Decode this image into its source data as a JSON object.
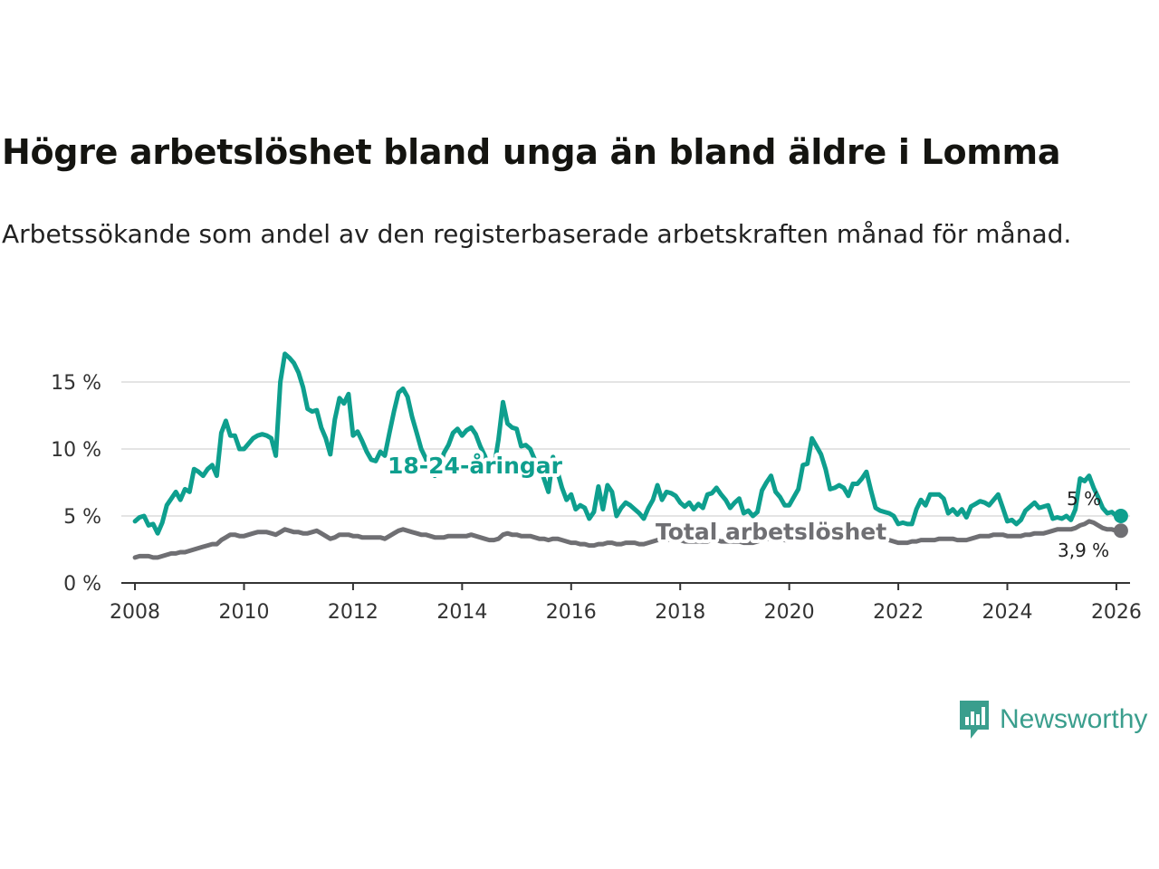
{
  "title": "Högre arbetslöshet bland unga än bland äldre i Lomma",
  "subtitle": "Arbetssökande som andel av den registerbaserade arbetskraften månad för månad.",
  "brand": {
    "name": "Newsworthy",
    "icon": "newsworthy-logo-icon",
    "color": "#3a9e8d"
  },
  "chart_data": {
    "type": "line",
    "title": "Högre arbetslöshet bland unga än bland äldre i Lomma",
    "subtitle": "Arbetssökande som andel av den registerbaserade arbetskraften månad för månad.",
    "xlabel": "",
    "ylabel": "",
    "xlim": [
      2007.75,
      2026.25
    ],
    "ylim": [
      0,
      17.5
    ],
    "x_ticks": [
      2008,
      2010,
      2012,
      2014,
      2016,
      2018,
      2020,
      2022,
      2024,
      2026
    ],
    "x_tick_labels": [
      "2008",
      "2010",
      "2012",
      "2014",
      "2016",
      "2018",
      "2020",
      "2022",
      "2024",
      "2026"
    ],
    "y_ticks": [
      0,
      5,
      10,
      15
    ],
    "y_tick_labels": [
      "0 %",
      "5 %",
      "10 %",
      "15 %"
    ],
    "grid": true,
    "x_start": 2008.0,
    "x_step": 0.08333,
    "series": [
      {
        "name": "18-24-åringar",
        "color": "#0e9f8e",
        "label_text": "18-24-åringar",
        "end_label": "5 %",
        "values": [
          4.6,
          4.9,
          5.0,
          4.3,
          4.4,
          3.7,
          4.5,
          5.8,
          6.3,
          6.8,
          6.2,
          7.0,
          6.8,
          8.5,
          8.3,
          8.0,
          8.5,
          8.8,
          8.0,
          11.2,
          12.1,
          11.0,
          11.0,
          10.0,
          10.0,
          10.4,
          10.8,
          11.0,
          11.1,
          11.0,
          10.8,
          9.5,
          15.0,
          17.1,
          16.8,
          16.4,
          15.7,
          14.6,
          13.0,
          12.8,
          12.9,
          11.6,
          10.8,
          9.6,
          12.2,
          13.8,
          13.4,
          14.1,
          11.0,
          11.3,
          10.6,
          9.8,
          9.2,
          9.1,
          9.8,
          9.5,
          11.2,
          12.8,
          14.2,
          14.5,
          13.9,
          12.4,
          11.2,
          10.0,
          9.3,
          8.3,
          8.0,
          8.6,
          9.7,
          10.3,
          11.2,
          11.5,
          11.0,
          11.4,
          11.6,
          11.1,
          10.2,
          9.5,
          8.5,
          8.6,
          10.7,
          13.5,
          11.9,
          11.6,
          11.5,
          10.2,
          10.3,
          10.0,
          9.2,
          8.8,
          7.8,
          6.8,
          9.4,
          8.3,
          7.1,
          6.2,
          6.6,
          5.5,
          5.8,
          5.6,
          4.8,
          5.3,
          7.2,
          5.5,
          7.3,
          6.8,
          5.0,
          5.6,
          6.0,
          5.8,
          5.5,
          5.2,
          4.8,
          5.6,
          6.2,
          7.3,
          6.2,
          6.8,
          6.7,
          6.5,
          6.0,
          5.7,
          6.0,
          5.5,
          5.9,
          5.6,
          6.6,
          6.7,
          7.1,
          6.6,
          6.2,
          5.6,
          6.0,
          6.3,
          5.2,
          5.4,
          5.0,
          5.3,
          6.9,
          7.5,
          8.0,
          6.8,
          6.4,
          5.8,
          5.8,
          6.4,
          7.0,
          8.8,
          8.9,
          10.8,
          10.2,
          9.6,
          8.5,
          7.0,
          7.1,
          7.3,
          7.1,
          6.5,
          7.4,
          7.4,
          7.8,
          8.3,
          6.9,
          5.6,
          5.4,
          5.3,
          5.2,
          5.0,
          4.4,
          4.5,
          4.4,
          4.4,
          5.5,
          6.2,
          5.8,
          6.6,
          6.6,
          6.6,
          6.3,
          5.2,
          5.5,
          5.1,
          5.5,
          4.9,
          5.7,
          5.9,
          6.1,
          6.0,
          5.8,
          6.2,
          6.6,
          5.6,
          4.6,
          4.7,
          4.4,
          4.7,
          5.4,
          5.7,
          6.0,
          5.6,
          5.7,
          5.8,
          4.8,
          4.9,
          4.8,
          5.0,
          4.7,
          5.5,
          7.8,
          7.6,
          8.0,
          7.1,
          6.4,
          5.6,
          5.2,
          5.3,
          5.0,
          5.0
        ]
      },
      {
        "name": "Total arbetslöshet",
        "color": "#6f6f73",
        "label_text": "Total arbetslöshet",
        "end_label": "3,9 %",
        "values": [
          1.9,
          2.0,
          2.0,
          2.0,
          1.9,
          1.9,
          2.0,
          2.1,
          2.2,
          2.2,
          2.3,
          2.3,
          2.4,
          2.5,
          2.6,
          2.7,
          2.8,
          2.9,
          2.9,
          3.2,
          3.4,
          3.6,
          3.6,
          3.5,
          3.5,
          3.6,
          3.7,
          3.8,
          3.8,
          3.8,
          3.7,
          3.6,
          3.8,
          4.0,
          3.9,
          3.8,
          3.8,
          3.7,
          3.7,
          3.8,
          3.9,
          3.7,
          3.5,
          3.3,
          3.4,
          3.6,
          3.6,
          3.6,
          3.5,
          3.5,
          3.4,
          3.4,
          3.4,
          3.4,
          3.4,
          3.3,
          3.5,
          3.7,
          3.9,
          4.0,
          3.9,
          3.8,
          3.7,
          3.6,
          3.6,
          3.5,
          3.4,
          3.4,
          3.4,
          3.5,
          3.5,
          3.5,
          3.5,
          3.5,
          3.6,
          3.5,
          3.4,
          3.3,
          3.2,
          3.2,
          3.3,
          3.6,
          3.7,
          3.6,
          3.6,
          3.5,
          3.5,
          3.5,
          3.4,
          3.3,
          3.3,
          3.2,
          3.3,
          3.3,
          3.2,
          3.1,
          3.0,
          3.0,
          2.9,
          2.9,
          2.8,
          2.8,
          2.9,
          2.9,
          3.0,
          3.0,
          2.9,
          2.9,
          3.0,
          3.0,
          3.0,
          2.9,
          2.9,
          3.0,
          3.1,
          3.2,
          3.2,
          3.2,
          3.3,
          3.3,
          3.2,
          3.1,
          3.1,
          3.1,
          3.1,
          3.1,
          3.1,
          3.2,
          3.2,
          3.1,
          3.1,
          3.1,
          3.1,
          3.1,
          3.0,
          3.0,
          3.0,
          3.1,
          3.2,
          3.3,
          3.3,
          3.3,
          3.3,
          3.2,
          3.2,
          3.3,
          3.3,
          3.5,
          3.6,
          3.8,
          3.8,
          3.7,
          3.6,
          3.5,
          3.5,
          3.5,
          3.5,
          3.4,
          3.5,
          3.5,
          3.5,
          3.5,
          3.4,
          3.3,
          3.3,
          3.2,
          3.2,
          3.1,
          3.0,
          3.0,
          3.0,
          3.1,
          3.1,
          3.2,
          3.2,
          3.2,
          3.2,
          3.3,
          3.3,
          3.3,
          3.3,
          3.2,
          3.2,
          3.2,
          3.3,
          3.4,
          3.5,
          3.5,
          3.5,
          3.6,
          3.6,
          3.6,
          3.5,
          3.5,
          3.5,
          3.5,
          3.6,
          3.6,
          3.7,
          3.7,
          3.7,
          3.8,
          3.9,
          4.0,
          4.0,
          4.0,
          4.0,
          4.1,
          4.3,
          4.4,
          4.6,
          4.5,
          4.3,
          4.1,
          4.0,
          4.0,
          3.9,
          3.9
        ]
      }
    ]
  }
}
